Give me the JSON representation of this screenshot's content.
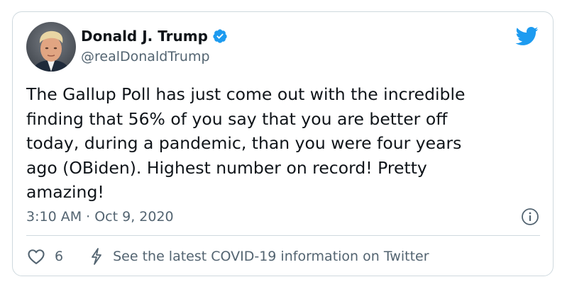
{
  "author": {
    "display_name": "Donald J. Trump",
    "handle": "@realDonaldTrump",
    "verified_icon": "verified-badge-icon",
    "avatar": "profile-photo"
  },
  "tweet": {
    "text": "The Gallup Poll has just come out with the incredible\nfinding that 56% of you say that you are better off\ntoday, during a pandemic, than you were four years\nago (OBiden). Highest number on record! Pretty\namazing!",
    "timestamp": "3:10 AM · Oct 9, 2020"
  },
  "actions": {
    "like_count": "6",
    "covid_info": "See the latest COVID-19 information on Twitter"
  },
  "colors": {
    "brand": "#1d9bf0",
    "text": "#0f1419",
    "secondary": "#536471",
    "border": "#cfd9de"
  }
}
